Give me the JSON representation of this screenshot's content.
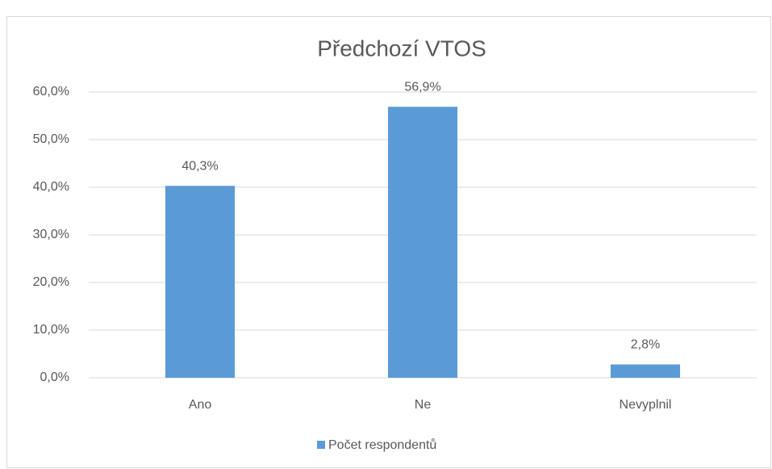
{
  "chart_data": {
    "type": "bar",
    "title": "Předchozí VTOS",
    "categories": [
      "Ano",
      "Ne",
      "Nevyplnil"
    ],
    "series": [
      {
        "name": "Počet respondentů",
        "color": "#5b9bd5",
        "values": [
          40.3,
          56.9,
          2.8
        ],
        "value_labels": [
          "40,3%",
          "56,9%",
          "2,8%"
        ]
      }
    ],
    "ylim": [
      0,
      60
    ],
    "yticks": [
      {
        "value": 0,
        "label": "0,0%"
      },
      {
        "value": 10,
        "label": "10,0%"
      },
      {
        "value": 20,
        "label": "20,0%"
      },
      {
        "value": 30,
        "label": "30,0%"
      },
      {
        "value": 40,
        "label": "40,0%"
      },
      {
        "value": 50,
        "label": "50,0%"
      },
      {
        "value": 60,
        "label": "60,0%"
      }
    ],
    "grid": true,
    "legend": "bottom"
  }
}
